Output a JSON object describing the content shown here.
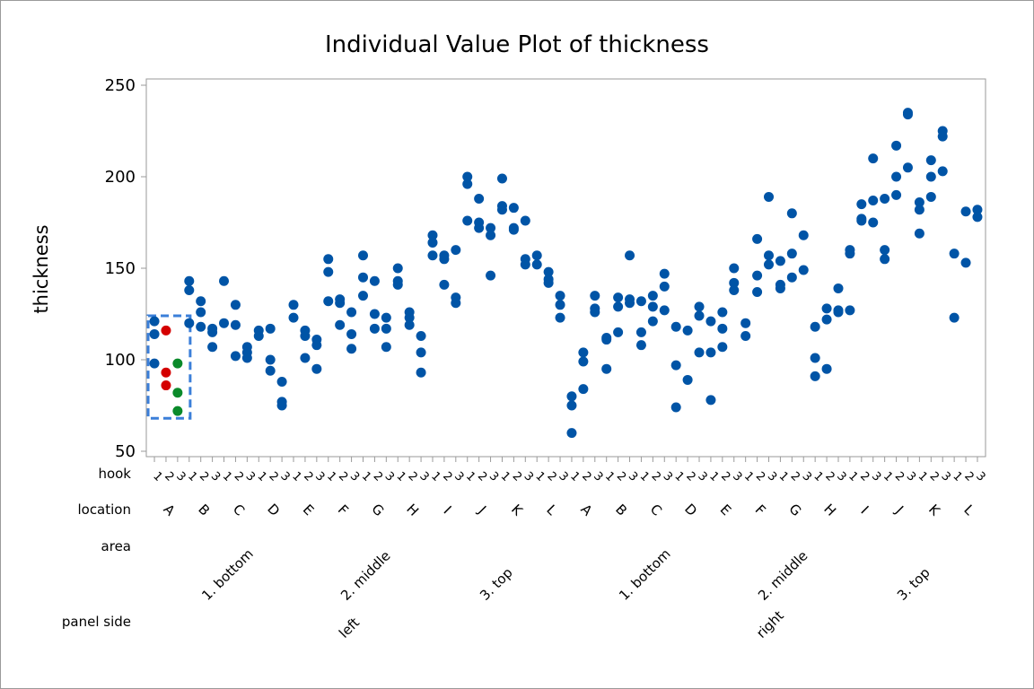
{
  "chart_data": {
    "type": "scatter",
    "title": "Individual Value Plot of thickness",
    "ylabel": "thickness",
    "ylim": [
      47,
      252
    ],
    "yticks": [
      50,
      100,
      150,
      200,
      250
    ],
    "grid": false,
    "x_factor_rows": [
      {
        "name": "hook",
        "label": "hook"
      },
      {
        "name": "location",
        "label": "location"
      },
      {
        "name": "area",
        "label": "area"
      },
      {
        "name": "panel side",
        "label": "panel side"
      }
    ],
    "hooks": [
      "1",
      "2",
      "3"
    ],
    "locations": [
      "A",
      "B",
      "C",
      "D",
      "E",
      "F",
      "G",
      "H",
      "I",
      "J",
      "K",
      "L"
    ],
    "areas": [
      {
        "label": "1. bottom",
        "locations": [
          "A",
          "B",
          "C",
          "D"
        ]
      },
      {
        "label": "2. middle",
        "locations": [
          "E",
          "F",
          "G",
          "H"
        ]
      },
      {
        "label": "3. top",
        "locations": [
          "I",
          "J",
          "K",
          "L"
        ]
      }
    ],
    "panel_sides": [
      "left",
      "right"
    ],
    "colors": {
      "default": "#0054a6",
      "highlight_red": "#d40000",
      "highlight_green": "#0a8a2a",
      "box": "#3b7fd9",
      "axis": "#9a9a9a"
    },
    "highlight_box": {
      "panel_side": "left",
      "location": "A",
      "ymin": 68,
      "ymax": 124
    },
    "series": [
      {
        "side": "left",
        "loc": "A",
        "hook": "1",
        "values": [
          121,
          114,
          98
        ]
      },
      {
        "side": "left",
        "loc": "A",
        "hook": "2",
        "values": [
          116,
          93,
          86
        ],
        "color": "highlight_red"
      },
      {
        "side": "left",
        "loc": "A",
        "hook": "3",
        "values": [
          98,
          82,
          72
        ],
        "color": "highlight_green"
      },
      {
        "side": "left",
        "loc": "B",
        "hook": "1",
        "values": [
          143,
          138,
          120
        ]
      },
      {
        "side": "left",
        "loc": "B",
        "hook": "2",
        "values": [
          132,
          126,
          118
        ]
      },
      {
        "side": "left",
        "loc": "B",
        "hook": "3",
        "values": [
          117,
          115,
          107
        ]
      },
      {
        "side": "left",
        "loc": "C",
        "hook": "1",
        "values": [
          143,
          120
        ]
      },
      {
        "side": "left",
        "loc": "C",
        "hook": "2",
        "values": [
          130,
          119,
          102
        ]
      },
      {
        "side": "left",
        "loc": "C",
        "hook": "3",
        "values": [
          107,
          104,
          101
        ]
      },
      {
        "side": "left",
        "loc": "D",
        "hook": "1",
        "values": [
          116,
          113
        ]
      },
      {
        "side": "left",
        "loc": "D",
        "hook": "2",
        "values": [
          117,
          100,
          94
        ]
      },
      {
        "side": "left",
        "loc": "D",
        "hook": "3",
        "values": [
          88,
          77,
          75
        ]
      },
      {
        "side": "left",
        "loc": "E",
        "hook": "1",
        "values": [
          130,
          123
        ]
      },
      {
        "side": "left",
        "loc": "E",
        "hook": "2",
        "values": [
          116,
          113,
          101
        ]
      },
      {
        "side": "left",
        "loc": "E",
        "hook": "3",
        "values": [
          111,
          108,
          95
        ]
      },
      {
        "side": "left",
        "loc": "F",
        "hook": "1",
        "values": [
          155,
          148,
          132
        ]
      },
      {
        "side": "left",
        "loc": "F",
        "hook": "2",
        "values": [
          133,
          131,
          119
        ]
      },
      {
        "side": "left",
        "loc": "F",
        "hook": "3",
        "values": [
          126,
          114,
          106
        ]
      },
      {
        "side": "left",
        "loc": "G",
        "hook": "1",
        "values": [
          157,
          145,
          135
        ]
      },
      {
        "side": "left",
        "loc": "G",
        "hook": "2",
        "values": [
          143,
          125,
          117
        ]
      },
      {
        "side": "left",
        "loc": "G",
        "hook": "3",
        "values": [
          123,
          117,
          107
        ]
      },
      {
        "side": "left",
        "loc": "H",
        "hook": "1",
        "values": [
          150,
          143,
          141
        ]
      },
      {
        "side": "left",
        "loc": "H",
        "hook": "2",
        "values": [
          126,
          123,
          119
        ]
      },
      {
        "side": "left",
        "loc": "H",
        "hook": "3",
        "values": [
          113,
          104,
          93
        ]
      },
      {
        "side": "left",
        "loc": "I",
        "hook": "1",
        "values": [
          168,
          164,
          157
        ]
      },
      {
        "side": "left",
        "loc": "I",
        "hook": "2",
        "values": [
          157,
          155,
          141
        ]
      },
      {
        "side": "left",
        "loc": "I",
        "hook": "3",
        "values": [
          160,
          134,
          131
        ]
      },
      {
        "side": "left",
        "loc": "J",
        "hook": "1",
        "values": [
          200,
          196,
          176
        ]
      },
      {
        "side": "left",
        "loc": "J",
        "hook": "2",
        "values": [
          188,
          175,
          172
        ]
      },
      {
        "side": "left",
        "loc": "J",
        "hook": "3",
        "values": [
          172,
          168,
          146
        ]
      },
      {
        "side": "left",
        "loc": "K",
        "hook": "1",
        "values": [
          199,
          184,
          182
        ]
      },
      {
        "side": "left",
        "loc": "K",
        "hook": "2",
        "values": [
          183,
          172,
          171
        ]
      },
      {
        "side": "left",
        "loc": "K",
        "hook": "3",
        "values": [
          176,
          155,
          152
        ]
      },
      {
        "side": "left",
        "loc": "L",
        "hook": "1",
        "values": [
          157,
          152
        ]
      },
      {
        "side": "left",
        "loc": "L",
        "hook": "2",
        "values": [
          148,
          144,
          142
        ]
      },
      {
        "side": "left",
        "loc": "L",
        "hook": "3",
        "values": [
          135,
          130,
          123
        ]
      },
      {
        "side": "right",
        "loc": "A",
        "hook": "1",
        "values": [
          80,
          75,
          60
        ]
      },
      {
        "side": "right",
        "loc": "A",
        "hook": "2",
        "values": [
          104,
          99,
          84
        ]
      },
      {
        "side": "right",
        "loc": "A",
        "hook": "3",
        "values": [
          135,
          128,
          126
        ]
      },
      {
        "side": "right",
        "loc": "B",
        "hook": "1",
        "values": [
          112,
          111,
          95
        ]
      },
      {
        "side": "right",
        "loc": "B",
        "hook": "2",
        "values": [
          134,
          129,
          115
        ]
      },
      {
        "side": "right",
        "loc": "B",
        "hook": "3",
        "values": [
          157,
          133,
          131
        ]
      },
      {
        "side": "right",
        "loc": "C",
        "hook": "1",
        "values": [
          132,
          115,
          108
        ]
      },
      {
        "side": "right",
        "loc": "C",
        "hook": "2",
        "values": [
          135,
          129,
          121
        ]
      },
      {
        "side": "right",
        "loc": "C",
        "hook": "3",
        "values": [
          147,
          140,
          127
        ]
      },
      {
        "side": "right",
        "loc": "D",
        "hook": "1",
        "values": [
          118,
          97,
          74
        ]
      },
      {
        "side": "right",
        "loc": "D",
        "hook": "2",
        "values": [
          116,
          89
        ]
      },
      {
        "side": "right",
        "loc": "D",
        "hook": "3",
        "values": [
          129,
          124,
          104
        ]
      },
      {
        "side": "right",
        "loc": "E",
        "hook": "1",
        "values": [
          121,
          104,
          78
        ]
      },
      {
        "side": "right",
        "loc": "E",
        "hook": "2",
        "values": [
          126,
          117,
          107
        ]
      },
      {
        "side": "right",
        "loc": "E",
        "hook": "3",
        "values": [
          150,
          142,
          138
        ]
      },
      {
        "side": "right",
        "loc": "F",
        "hook": "1",
        "values": [
          120,
          113
        ]
      },
      {
        "side": "right",
        "loc": "F",
        "hook": "2",
        "values": [
          166,
          146,
          137
        ]
      },
      {
        "side": "right",
        "loc": "F",
        "hook": "3",
        "values": [
          189,
          157,
          152
        ]
      },
      {
        "side": "right",
        "loc": "G",
        "hook": "1",
        "values": [
          154,
          141,
          139
        ]
      },
      {
        "side": "right",
        "loc": "G",
        "hook": "2",
        "values": [
          180,
          158,
          145
        ]
      },
      {
        "side": "right",
        "loc": "G",
        "hook": "3",
        "values": [
          168,
          149
        ]
      },
      {
        "side": "right",
        "loc": "H",
        "hook": "1",
        "values": [
          118,
          101,
          91
        ]
      },
      {
        "side": "right",
        "loc": "H",
        "hook": "2",
        "values": [
          128,
          122,
          95
        ]
      },
      {
        "side": "right",
        "loc": "H",
        "hook": "3",
        "values": [
          139,
          127,
          126
        ]
      },
      {
        "side": "right",
        "loc": "I",
        "hook": "1",
        "values": [
          160,
          158,
          127
        ]
      },
      {
        "side": "right",
        "loc": "I",
        "hook": "2",
        "values": [
          185,
          177,
          176
        ]
      },
      {
        "side": "right",
        "loc": "I",
        "hook": "3",
        "values": [
          210,
          187,
          175
        ]
      },
      {
        "side": "right",
        "loc": "J",
        "hook": "1",
        "values": [
          188,
          160,
          155
        ]
      },
      {
        "side": "right",
        "loc": "J",
        "hook": "2",
        "values": [
          217,
          200,
          190
        ]
      },
      {
        "side": "right",
        "loc": "J",
        "hook": "3",
        "values": [
          235,
          234,
          205
        ]
      },
      {
        "side": "right",
        "loc": "K",
        "hook": "1",
        "values": [
          186,
          182,
          169
        ]
      },
      {
        "side": "right",
        "loc": "K",
        "hook": "2",
        "values": [
          209,
          200,
          189
        ]
      },
      {
        "side": "right",
        "loc": "K",
        "hook": "3",
        "values": [
          225,
          222,
          203
        ]
      },
      {
        "side": "right",
        "loc": "L",
        "hook": "1",
        "values": [
          158,
          123
        ]
      },
      {
        "side": "right",
        "loc": "L",
        "hook": "2",
        "values": [
          181,
          153
        ]
      },
      {
        "side": "right",
        "loc": "L",
        "hook": "3",
        "values": [
          182,
          178
        ]
      }
    ]
  }
}
